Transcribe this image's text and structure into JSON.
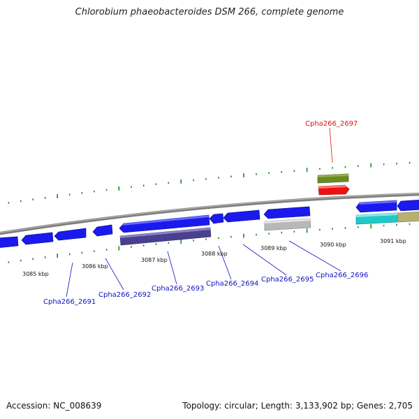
{
  "title": "Chlorobium phaeobacteroides DSM 266, complete genome",
  "accession_label": "Accession:",
  "accession": "NC_008639",
  "topology_label": "Topology:",
  "topology": "circular",
  "length_label": "Length:",
  "length": "3,133,902 bp",
  "genes_label": "Genes:",
  "genes": "2,705",
  "kbp_ticks": [
    {
      "label": "3085 kbp"
    },
    {
      "label": "3086 kbp"
    },
    {
      "label": "3087 kbp"
    },
    {
      "label": "3088 kbp"
    },
    {
      "label": "3089 kbp"
    },
    {
      "label": "3090 kbp"
    },
    {
      "label": "3091 kbp"
    }
  ],
  "gene_labels": [
    {
      "label": "Cpha266_2691",
      "color": "#1010c0"
    },
    {
      "label": "Cpha266_2692",
      "color": "#1010c0"
    },
    {
      "label": "Cpha266_2693",
      "color": "#1010c0"
    },
    {
      "label": "Cpha266_2694",
      "color": "#1010c0"
    },
    {
      "label": "Cpha266_2695",
      "color": "#1010c0"
    },
    {
      "label": "Cpha266_2696",
      "color": "#1010c0"
    },
    {
      "label": "Cpha266_2697",
      "color": "#e01010"
    }
  ],
  "colors": {
    "cds_forward": "#1a1aee",
    "highlight_red": "#ee1111",
    "rna_green": "#6b8a22",
    "gray_feature": "#b8b8b8",
    "purple_feature": "#4a4090",
    "cyan_feature": "#22c8c8",
    "khaki_feature": "#b8b070",
    "tick_green": "#1c8a1c",
    "backbone": "#8a8a8a"
  }
}
